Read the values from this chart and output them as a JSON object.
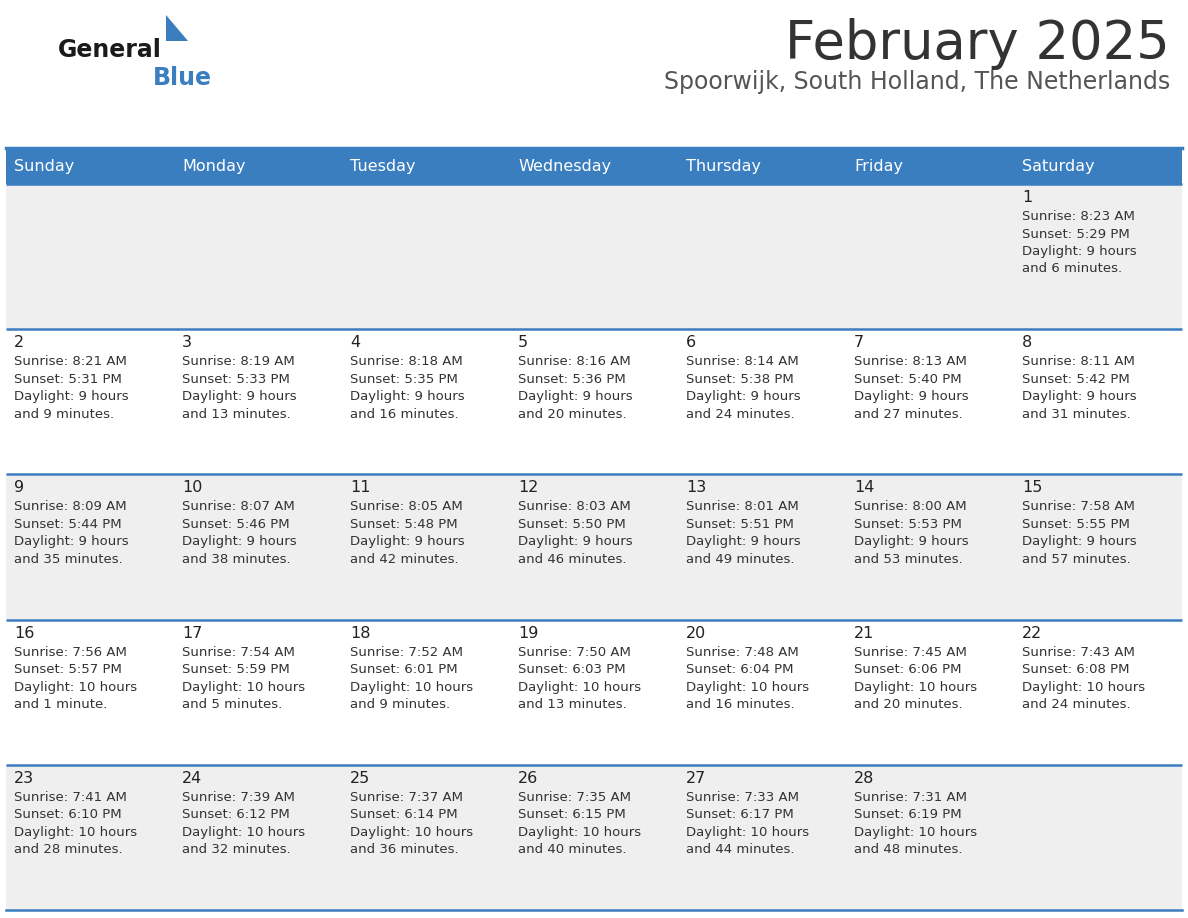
{
  "title": "February 2025",
  "subtitle": "Spoorwijk, South Holland, The Netherlands",
  "header_color": "#3a7ebf",
  "header_text_color": "#ffffff",
  "cell_bg_odd": "#efefef",
  "cell_bg_even": "#ffffff",
  "border_color": "#3a7ebf",
  "title_color": "#333333",
  "subtitle_color": "#555555",
  "day_names": [
    "Sunday",
    "Monday",
    "Tuesday",
    "Wednesday",
    "Thursday",
    "Friday",
    "Saturday"
  ],
  "weeks": [
    [
      {
        "day": null,
        "sunrise": null,
        "sunset": null,
        "daylight": null
      },
      {
        "day": null,
        "sunrise": null,
        "sunset": null,
        "daylight": null
      },
      {
        "day": null,
        "sunrise": null,
        "sunset": null,
        "daylight": null
      },
      {
        "day": null,
        "sunrise": null,
        "sunset": null,
        "daylight": null
      },
      {
        "day": null,
        "sunrise": null,
        "sunset": null,
        "daylight": null
      },
      {
        "day": null,
        "sunrise": null,
        "sunset": null,
        "daylight": null
      },
      {
        "day": 1,
        "sunrise": "8:23 AM",
        "sunset": "5:29 PM",
        "daylight": "9 hours\nand 6 minutes."
      }
    ],
    [
      {
        "day": 2,
        "sunrise": "8:21 AM",
        "sunset": "5:31 PM",
        "daylight": "9 hours\nand 9 minutes."
      },
      {
        "day": 3,
        "sunrise": "8:19 AM",
        "sunset": "5:33 PM",
        "daylight": "9 hours\nand 13 minutes."
      },
      {
        "day": 4,
        "sunrise": "8:18 AM",
        "sunset": "5:35 PM",
        "daylight": "9 hours\nand 16 minutes."
      },
      {
        "day": 5,
        "sunrise": "8:16 AM",
        "sunset": "5:36 PM",
        "daylight": "9 hours\nand 20 minutes."
      },
      {
        "day": 6,
        "sunrise": "8:14 AM",
        "sunset": "5:38 PM",
        "daylight": "9 hours\nand 24 minutes."
      },
      {
        "day": 7,
        "sunrise": "8:13 AM",
        "sunset": "5:40 PM",
        "daylight": "9 hours\nand 27 minutes."
      },
      {
        "day": 8,
        "sunrise": "8:11 AM",
        "sunset": "5:42 PM",
        "daylight": "9 hours\nand 31 minutes."
      }
    ],
    [
      {
        "day": 9,
        "sunrise": "8:09 AM",
        "sunset": "5:44 PM",
        "daylight": "9 hours\nand 35 minutes."
      },
      {
        "day": 10,
        "sunrise": "8:07 AM",
        "sunset": "5:46 PM",
        "daylight": "9 hours\nand 38 minutes."
      },
      {
        "day": 11,
        "sunrise": "8:05 AM",
        "sunset": "5:48 PM",
        "daylight": "9 hours\nand 42 minutes."
      },
      {
        "day": 12,
        "sunrise": "8:03 AM",
        "sunset": "5:50 PM",
        "daylight": "9 hours\nand 46 minutes."
      },
      {
        "day": 13,
        "sunrise": "8:01 AM",
        "sunset": "5:51 PM",
        "daylight": "9 hours\nand 49 minutes."
      },
      {
        "day": 14,
        "sunrise": "8:00 AM",
        "sunset": "5:53 PM",
        "daylight": "9 hours\nand 53 minutes."
      },
      {
        "day": 15,
        "sunrise": "7:58 AM",
        "sunset": "5:55 PM",
        "daylight": "9 hours\nand 57 minutes."
      }
    ],
    [
      {
        "day": 16,
        "sunrise": "7:56 AM",
        "sunset": "5:57 PM",
        "daylight": "10 hours\nand 1 minute."
      },
      {
        "day": 17,
        "sunrise": "7:54 AM",
        "sunset": "5:59 PM",
        "daylight": "10 hours\nand 5 minutes."
      },
      {
        "day": 18,
        "sunrise": "7:52 AM",
        "sunset": "6:01 PM",
        "daylight": "10 hours\nand 9 minutes."
      },
      {
        "day": 19,
        "sunrise": "7:50 AM",
        "sunset": "6:03 PM",
        "daylight": "10 hours\nand 13 minutes."
      },
      {
        "day": 20,
        "sunrise": "7:48 AM",
        "sunset": "6:04 PM",
        "daylight": "10 hours\nand 16 minutes."
      },
      {
        "day": 21,
        "sunrise": "7:45 AM",
        "sunset": "6:06 PM",
        "daylight": "10 hours\nand 20 minutes."
      },
      {
        "day": 22,
        "sunrise": "7:43 AM",
        "sunset": "6:08 PM",
        "daylight": "10 hours\nand 24 minutes."
      }
    ],
    [
      {
        "day": 23,
        "sunrise": "7:41 AM",
        "sunset": "6:10 PM",
        "daylight": "10 hours\nand 28 minutes."
      },
      {
        "day": 24,
        "sunrise": "7:39 AM",
        "sunset": "6:12 PM",
        "daylight": "10 hours\nand 32 minutes."
      },
      {
        "day": 25,
        "sunrise": "7:37 AM",
        "sunset": "6:14 PM",
        "daylight": "10 hours\nand 36 minutes."
      },
      {
        "day": 26,
        "sunrise": "7:35 AM",
        "sunset": "6:15 PM",
        "daylight": "10 hours\nand 40 minutes."
      },
      {
        "day": 27,
        "sunrise": "7:33 AM",
        "sunset": "6:17 PM",
        "daylight": "10 hours\nand 44 minutes."
      },
      {
        "day": 28,
        "sunrise": "7:31 AM",
        "sunset": "6:19 PM",
        "daylight": "10 hours\nand 48 minutes."
      },
      {
        "day": null,
        "sunrise": null,
        "sunset": null,
        "daylight": null
      }
    ]
  ],
  "fig_width": 11.88,
  "fig_height": 9.18,
  "dpi": 100
}
